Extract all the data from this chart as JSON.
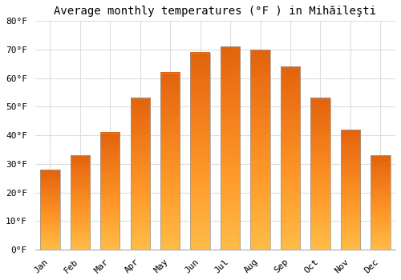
{
  "title": "Average monthly temperatures (°F ) in Mihăileşti",
  "months": [
    "Jan",
    "Feb",
    "Mar",
    "Apr",
    "May",
    "Jun",
    "Jul",
    "Aug",
    "Sep",
    "Oct",
    "Nov",
    "Dec"
  ],
  "values": [
    28,
    33,
    41,
    53,
    62,
    69,
    71,
    70,
    64,
    53,
    42,
    33
  ],
  "bar_color": "#FFA500",
  "bar_edge_color": "#999999",
  "background_color": "#FFFFFF",
  "grid_color": "#DDDDDD",
  "ylim": [
    0,
    80
  ],
  "ytick_step": 10,
  "title_fontsize": 10,
  "tick_fontsize": 8,
  "font_family": "monospace"
}
